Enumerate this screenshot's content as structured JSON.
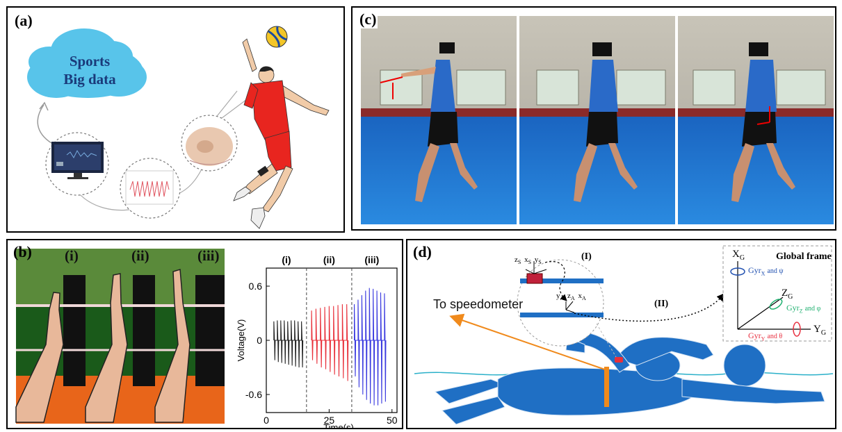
{
  "panel_a": {
    "label": "(a)",
    "cloud_text_line1": "Sports",
    "cloud_text_line2": "Big data"
  },
  "panel_b": {
    "label": "(b)",
    "photo_tags": [
      "(i)",
      "(ii)",
      "(iii)"
    ],
    "chart_data": {
      "type": "line",
      "segment_labels": [
        "(i)",
        "(ii)",
        "(iii)"
      ],
      "ylabel": "Voltage(V)",
      "xlabel": "Time(s)",
      "ylim": [
        -0.8,
        0.8
      ],
      "xlim": [
        0,
        52
      ],
      "x_ticks": [
        "0",
        "25",
        "50"
      ],
      "y_ticks": [
        "0.6",
        "0",
        "-0.6"
      ],
      "dividers_x": [
        16,
        34
      ],
      "series": [
        {
          "color": "#222222",
          "x_range": [
            3,
            14
          ],
          "peaks": [
            0.21,
            0.22,
            0.22,
            0.22,
            0.21,
            0.22,
            0.22,
            0.21,
            0.21
          ],
          "troughs": [
            -0.22,
            -0.24,
            -0.25,
            -0.26,
            -0.27,
            -0.28,
            -0.29,
            -0.3,
            -0.3
          ]
        },
        {
          "color": "#e8303a",
          "x_range": [
            18,
            32
          ],
          "peaks": [
            0.33,
            0.35,
            0.36,
            0.37,
            0.38,
            0.38,
            0.39,
            0.4,
            0.4
          ],
          "troughs": [
            -0.22,
            -0.26,
            -0.3,
            -0.32,
            -0.35,
            -0.38,
            -0.4,
            -0.42,
            -0.45
          ]
        },
        {
          "color": "#3a3adf",
          "x_range": [
            35,
            47
          ],
          "peaks": [
            0.4,
            0.45,
            0.5,
            0.55,
            0.58,
            0.57,
            0.55,
            0.53,
            0.52
          ],
          "troughs": [
            -0.4,
            -0.52,
            -0.6,
            -0.66,
            -0.7,
            -0.72,
            -0.72,
            -0.7,
            -0.68
          ]
        }
      ]
    }
  },
  "panel_c": {
    "label": "(c)"
  },
  "panel_d": {
    "label": "(d)",
    "speedometer_text": "To speedometer",
    "step1_label": "(I)",
    "step2_label": "(II)",
    "global_frame_title": "Global frame",
    "axis_xg": "X",
    "axis_yg": "Y",
    "axis_zg": "Z",
    "axis_subscript": "G",
    "gyr_x": "Gyr",
    "gyr_x_sub": "X",
    "gyr_x_tail": "and ψ",
    "gyr_z": "Gyr",
    "gyr_z_sub": "Z",
    "gyr_z_tail": "and φ",
    "gyr_y": "Gyr",
    "gyr_y_sub": "Y",
    "gyr_y_tail": "and θ",
    "sensor_axes": [
      "z",
      "x",
      "y"
    ],
    "sensor_sub": "S",
    "accel_axes": [
      "y",
      "z",
      "x"
    ],
    "accel_sub": "A",
    "colors": {
      "body": "#1f6fc4",
      "water": "#2ab0c9",
      "orange": "#f08a1c",
      "gyr_x": "#2050b0",
      "gyr_z": "#20b070",
      "gyr_y": "#e83040"
    }
  }
}
